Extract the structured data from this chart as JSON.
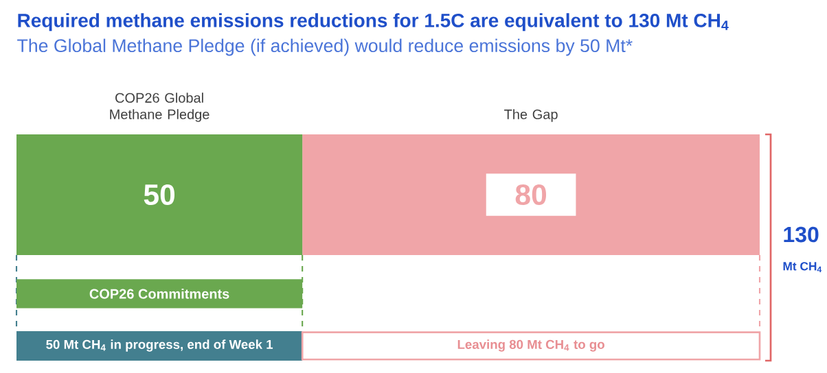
{
  "chart_data": {
    "type": "bar",
    "orientation": "horizontal",
    "stacked": true,
    "title": "Required methane emissions reductions for 1.5C are equivalent to 130 Mt CH$_{4}$",
    "subtitle": "The Global Methane Pledge (if achieved) would reduce emissions by 50 Mt*",
    "categories": [
      null
    ],
    "series": [
      {
        "name": "COP26 Global Methane Pledge",
        "color": "#6aa84f",
        "values": [
          50
        ]
      },
      {
        "name": "The Gap",
        "color": "#f0a5a8",
        "values": [
          80
        ]
      }
    ],
    "data_labels": true,
    "totals": [
      "130"
    ],
    "annotations": [
      "Mt CH$_{4}$",
      "COP26 Commitments",
      "50 Mt CH$_{4}$ in progress, end of Week 1",
      "Leaving 80 Mt CH$_{4}$ to go"
    ]
  }
}
